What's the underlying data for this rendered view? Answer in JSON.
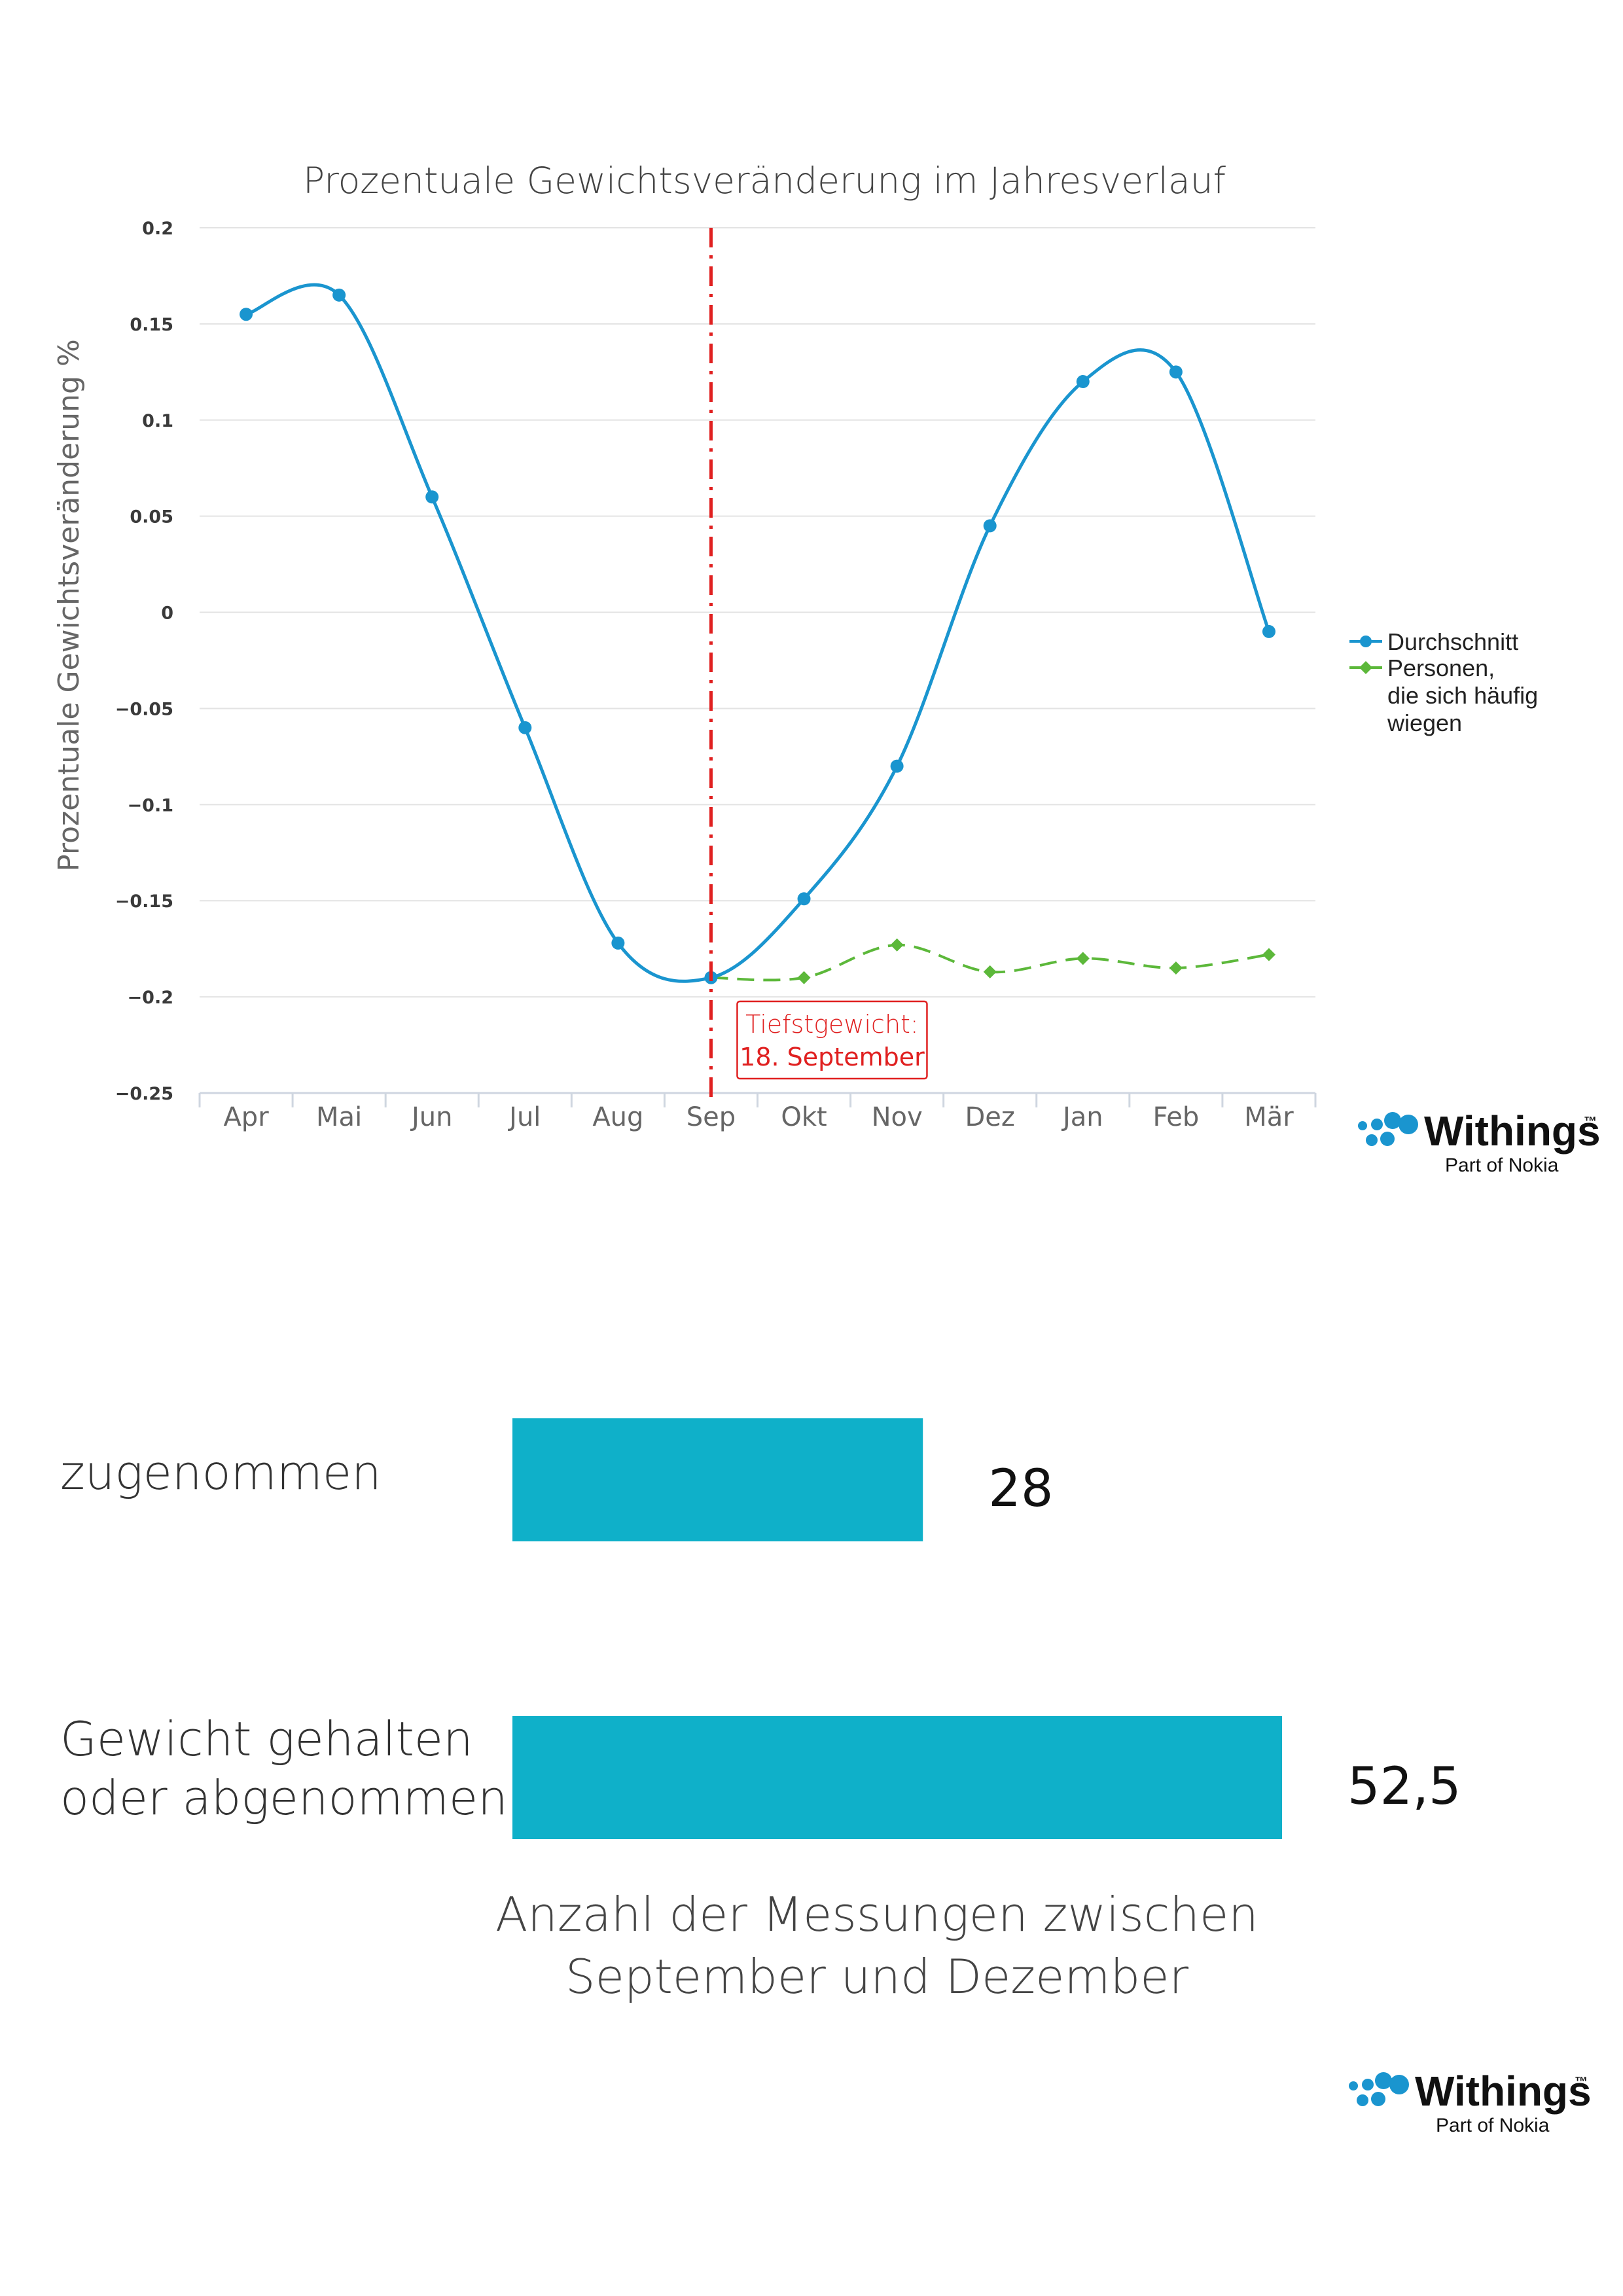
{
  "colors": {
    "average": "#1a95cf",
    "frequent": "#5cb83a",
    "lowest_marker": "#e02020",
    "bars": "#0fb0c9",
    "grid": "#e3e3e3"
  },
  "chart_data": [
    {
      "type": "line",
      "title": "Prozentuale Gewichtsveränderung im Jahresverlauf",
      "xlabel": "",
      "ylabel": "Prozentuale Gewichtsveränderung %",
      "categories": [
        "Apr",
        "Mai",
        "Jun",
        "Jul",
        "Aug",
        "Sep",
        "Okt",
        "Nov",
        "Dez",
        "Jan",
        "Feb",
        "Mär"
      ],
      "ylim": [
        -0.25,
        0.2
      ],
      "yticks": [
        "0.2",
        "0.15",
        "0.1",
        "0.05",
        "0",
        "−0.05",
        "−0.1",
        "−0.15",
        "−0.2",
        "−0.25"
      ],
      "grid": true,
      "legend_position": "right",
      "series": [
        {
          "name": "Durchschnitt",
          "values": [
            0.155,
            0.165,
            0.06,
            -0.06,
            -0.172,
            -0.19,
            -0.149,
            -0.08,
            0.045,
            0.12,
            0.125,
            -0.01
          ]
        },
        {
          "name": "Personen, die sich häufig wiegen",
          "legend_lines": [
            "Personen,",
            "die sich häufig",
            "wiegen"
          ],
          "values": [
            null,
            null,
            null,
            null,
            null,
            -0.19,
            -0.19,
            -0.173,
            -0.187,
            -0.18,
            -0.185,
            -0.178
          ]
        }
      ],
      "annotation": {
        "category": "Sep",
        "lines": [
          "Tiefstgewicht:",
          "18. September"
        ]
      }
    },
    {
      "type": "bar",
      "orientation": "horizontal",
      "categories": [
        "zugenommen",
        "Gewicht gehalten oder abgenommen"
      ],
      "category_lines": [
        [
          "zugenommen"
        ],
        [
          "Gewicht gehalten",
          "oder abgenommen"
        ]
      ],
      "values": [
        28,
        52.5
      ],
      "value_labels": [
        "28",
        "52,5"
      ],
      "caption_lines": [
        "Anzahl der Messungen zwischen",
        "September und Dezember"
      ]
    }
  ],
  "logo": {
    "name": "Withings",
    "trademark": "™",
    "tagline": "Part of Nokia"
  }
}
